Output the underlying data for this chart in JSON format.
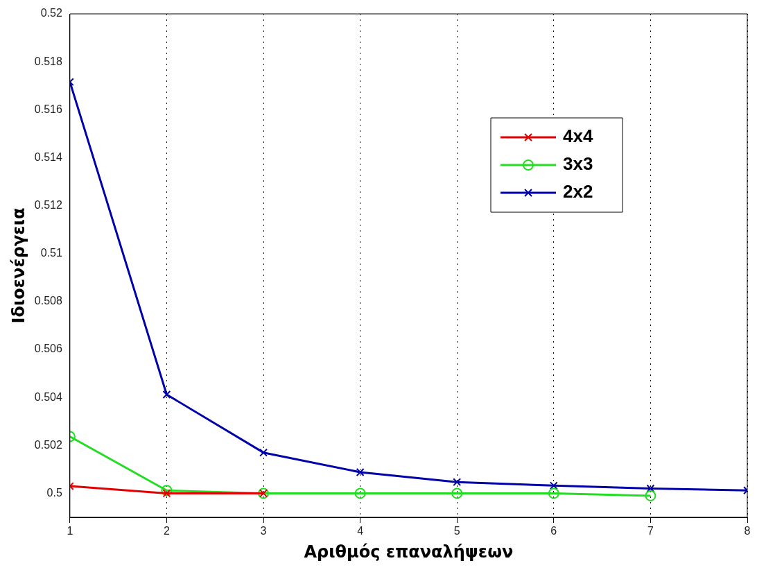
{
  "chart_data": {
    "type": "line",
    "xlabel": "Αριθμός επαναλήψεων",
    "ylabel": "Ιδιοενέργεια",
    "x": [
      1,
      2,
      3,
      4,
      5,
      6,
      7,
      8
    ],
    "series": [
      {
        "name": "4x4",
        "color": "#e00000",
        "marker": "cross",
        "values": [
          0.5003,
          0.5,
          0.5,
          null,
          null,
          null,
          null,
          null
        ]
      },
      {
        "name": "3x3",
        "color": "#22dd22",
        "marker": "circle",
        "values": [
          0.50237,
          0.50012,
          0.5,
          0.5,
          0.5,
          0.5,
          0.4999,
          null
        ]
      },
      {
        "name": "2x2",
        "color": "#0000a8",
        "marker": "cross",
        "values": [
          0.51716,
          0.50412,
          0.5017,
          0.50088,
          0.50047,
          0.50032,
          0.5002,
          0.50012
        ]
      }
    ],
    "xlim": [
      1,
      8
    ],
    "xticks": [
      1,
      2,
      3,
      4,
      5,
      6,
      7,
      8
    ],
    "ylim": [
      0.499,
      0.52
    ],
    "yticks": [
      0.5,
      0.502,
      0.504,
      0.506,
      0.508,
      0.51,
      0.512,
      0.514,
      0.516,
      0.518,
      0.52
    ],
    "grid": "x",
    "legend": "top right",
    "line_style": "solid"
  }
}
